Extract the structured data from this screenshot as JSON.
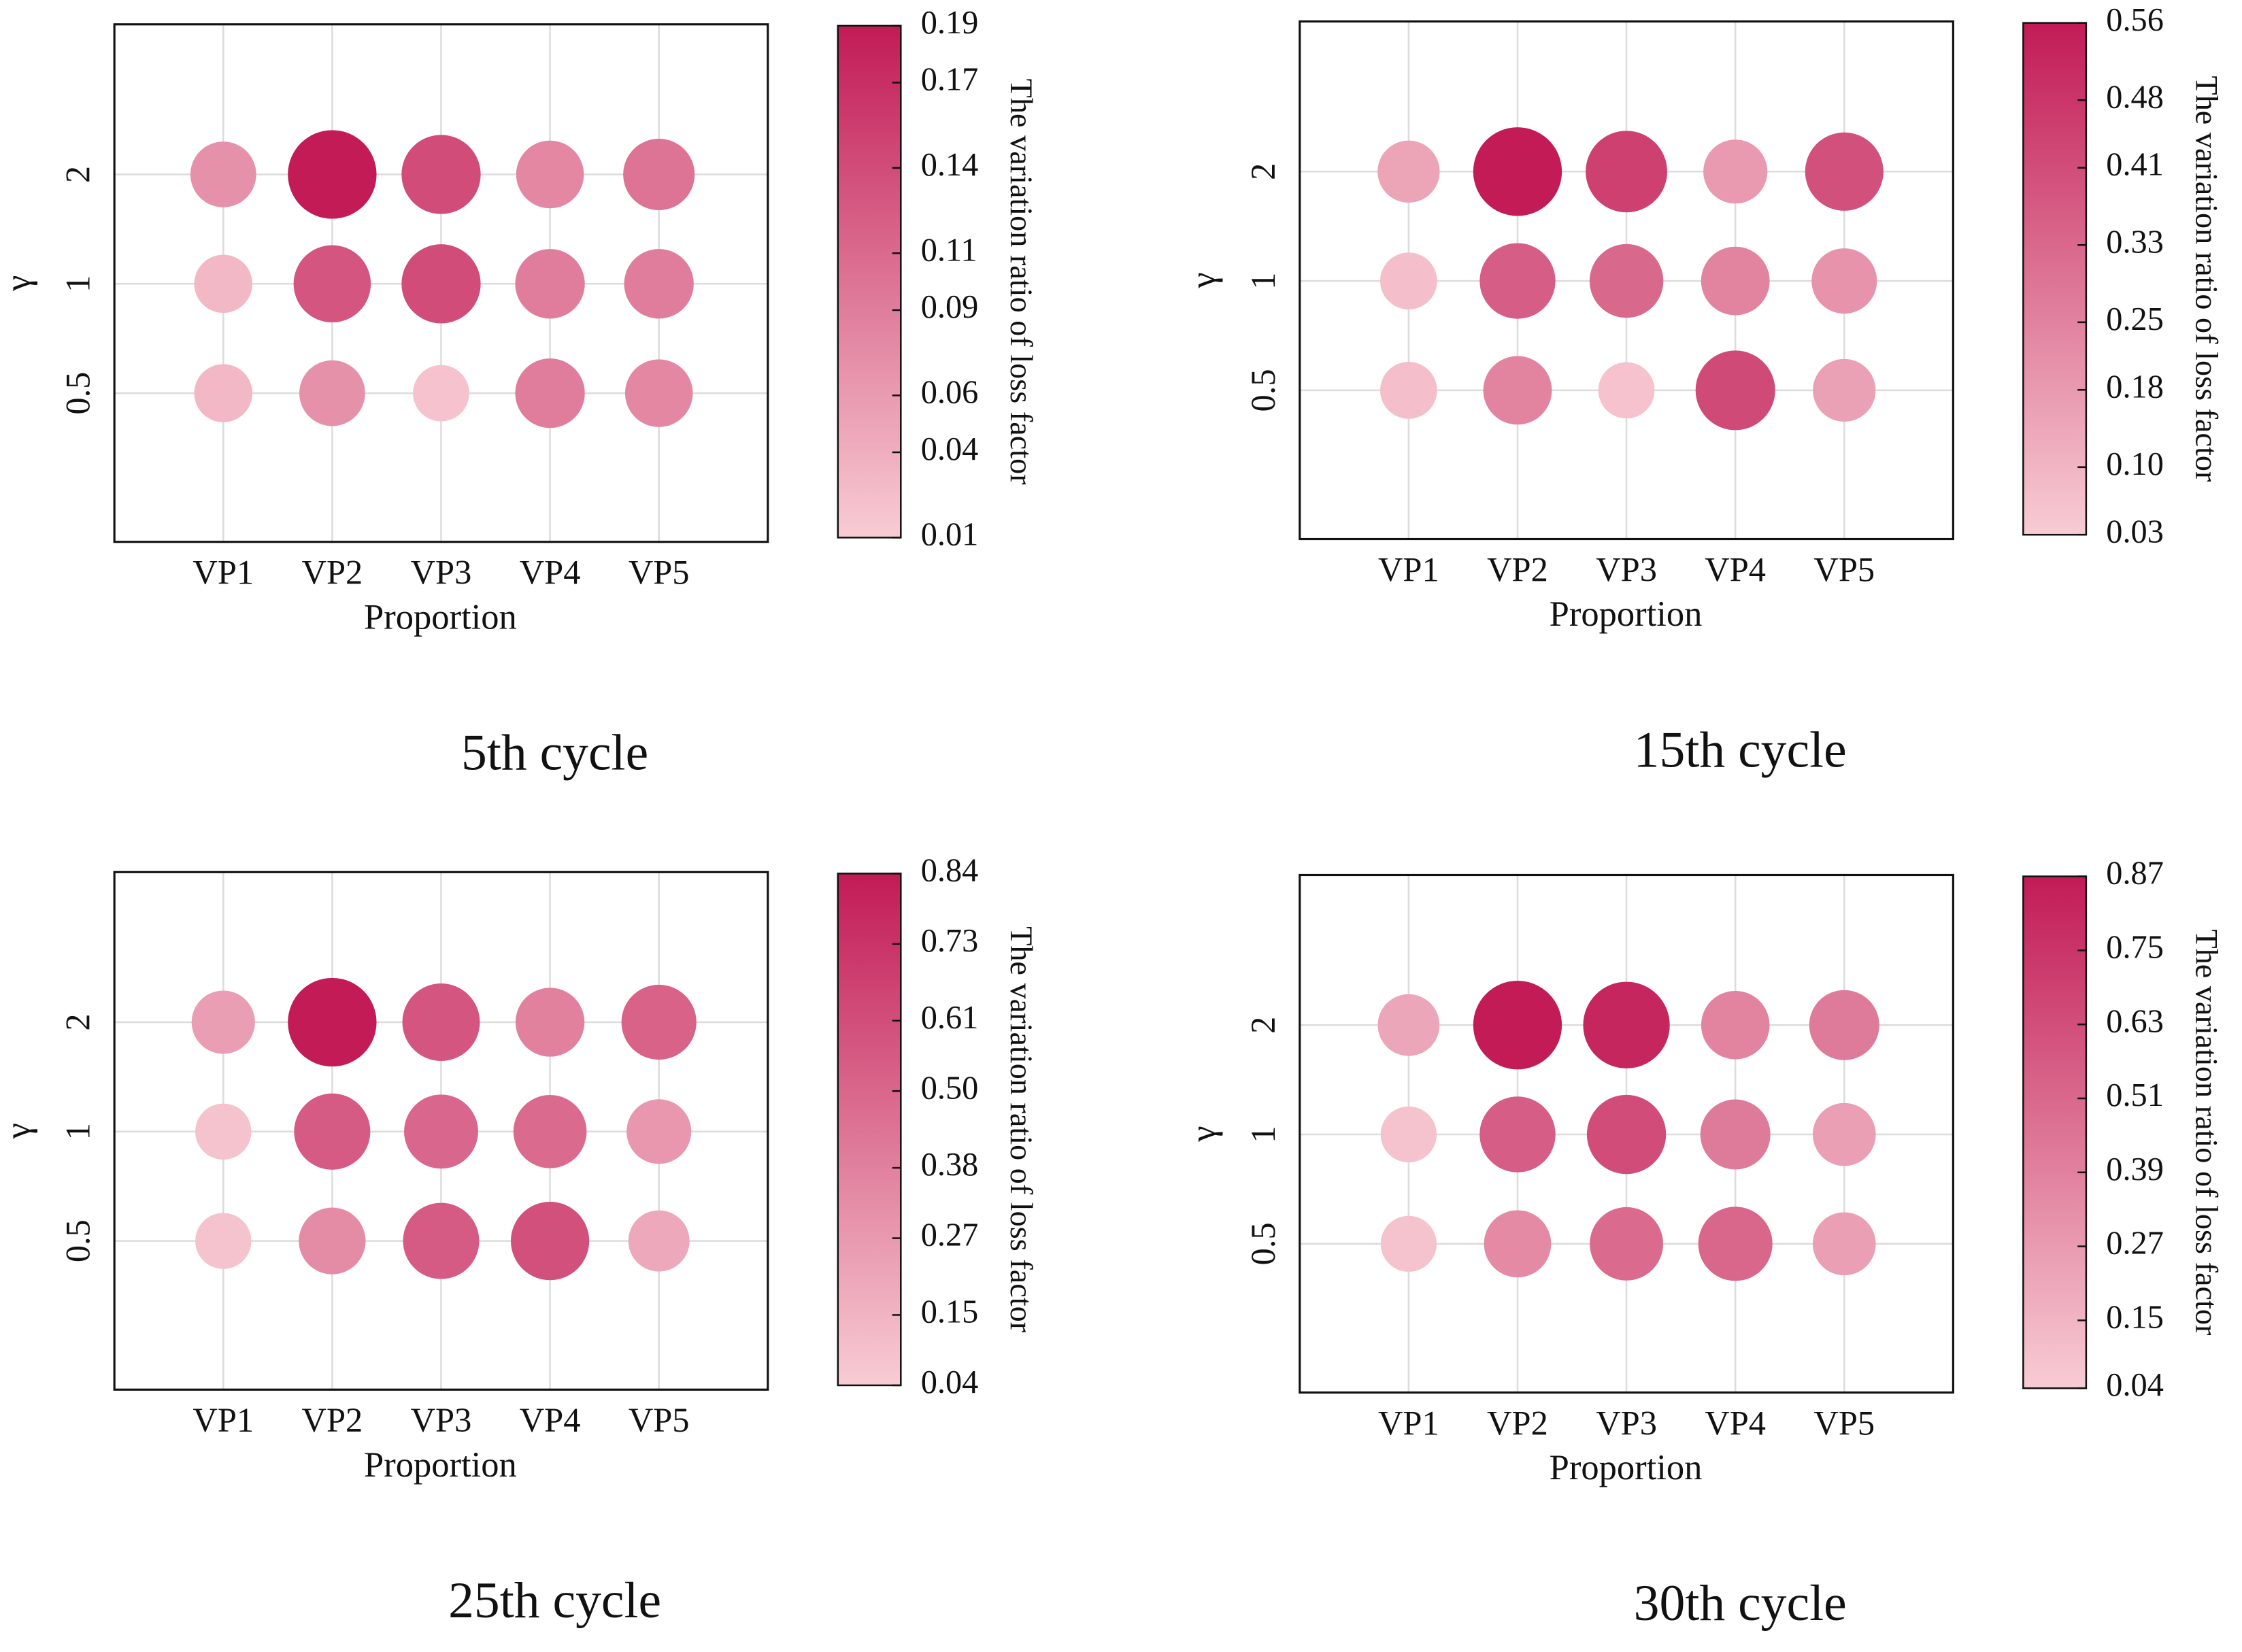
{
  "chart_data": [
    {
      "type": "bubble",
      "title": "5th cycle",
      "x_label": "Proportion",
      "y_label": "γ",
      "categories": [
        "VP1",
        "VP2",
        "VP3",
        "VP4",
        "VP5"
      ],
      "y_categories": [
        "0.5",
        "1",
        "2"
      ],
      "values": [
        [
          0.03,
          0.07,
          0.02,
          0.09,
          0.08
        ],
        [
          0.03,
          0.13,
          0.14,
          0.09,
          0.09
        ],
        [
          0.07,
          0.19,
          0.14,
          0.08,
          0.1
        ]
      ],
      "colorbar_label": "The variation ratio of loss factor",
      "clim": [
        0.01,
        0.19
      ],
      "cticks": [
        0.01,
        0.04,
        0.06,
        0.09,
        0.11,
        0.14,
        0.17,
        0.19
      ],
      "colormap": [
        "#f8ccd4",
        "#c21b56"
      ],
      "grid": true
    },
    {
      "type": "bubble",
      "title": "15th cycle",
      "x_label": "Proportion",
      "y_label": "γ",
      "categories": [
        "VP1",
        "VP2",
        "VP3",
        "VP4",
        "VP5"
      ],
      "y_categories": [
        "0.5",
        "1",
        "2"
      ],
      "values": [
        [
          0.07,
          0.25,
          0.06,
          0.42,
          0.16
        ],
        [
          0.07,
          0.36,
          0.33,
          0.25,
          0.2
        ],
        [
          0.15,
          0.56,
          0.45,
          0.18,
          0.4
        ]
      ],
      "colorbar_label": "The variation ratio of loss factor",
      "clim": [
        0.03,
        0.56
      ],
      "cticks": [
        0.03,
        {
          "value": 0.1,
          "label": "0.10"
        },
        0.18,
        0.25,
        0.33,
        0.41,
        0.48,
        0.56
      ],
      "colormap": [
        "#f8ccd4",
        "#c21b56"
      ],
      "grid": true
    },
    {
      "type": "bubble",
      "title": "25th cycle",
      "x_label": "Proportion",
      "y_label": "γ",
      "categories": [
        "VP1",
        "VP2",
        "VP3",
        "VP4",
        "VP5"
      ],
      "y_categories": [
        "0.5",
        "1",
        "2"
      ],
      "values": [
        [
          0.08,
          0.33,
          0.55,
          0.6,
          0.2
        ],
        [
          0.08,
          0.55,
          0.5,
          0.48,
          0.28
        ],
        [
          0.25,
          0.84,
          0.58,
          0.38,
          0.52
        ]
      ],
      "colorbar_label": "The variation ratio of loss factor",
      "clim": [
        0.04,
        0.84
      ],
      "cticks": [
        0.04,
        0.15,
        0.27,
        0.38,
        {
          "value": 0.5,
          "label": "0.50"
        },
        0.61,
        0.73,
        0.84
      ],
      "colormap": [
        "#f8ccd4",
        "#c21b56"
      ],
      "grid": true
    },
    {
      "type": "bubble",
      "title": "30th cycle",
      "x_label": "Proportion",
      "y_label": "γ",
      "categories": [
        "VP1",
        "VP2",
        "VP3",
        "VP4",
        "VP5"
      ],
      "y_categories": [
        "0.5",
        "1",
        "2"
      ],
      "values": [
        [
          0.08,
          0.35,
          0.5,
          0.52,
          0.25
        ],
        [
          0.08,
          0.56,
          0.64,
          0.42,
          0.25
        ],
        [
          0.22,
          0.87,
          0.82,
          0.38,
          0.42
        ]
      ],
      "colorbar_label": "The variation ratio of loss factor",
      "clim": [
        0.04,
        0.87
      ],
      "cticks": [
        0.04,
        0.15,
        0.27,
        0.39,
        0.51,
        0.63,
        0.75,
        0.87
      ],
      "colormap": [
        "#f8ccd4",
        "#c21b56"
      ],
      "grid": true
    }
  ]
}
